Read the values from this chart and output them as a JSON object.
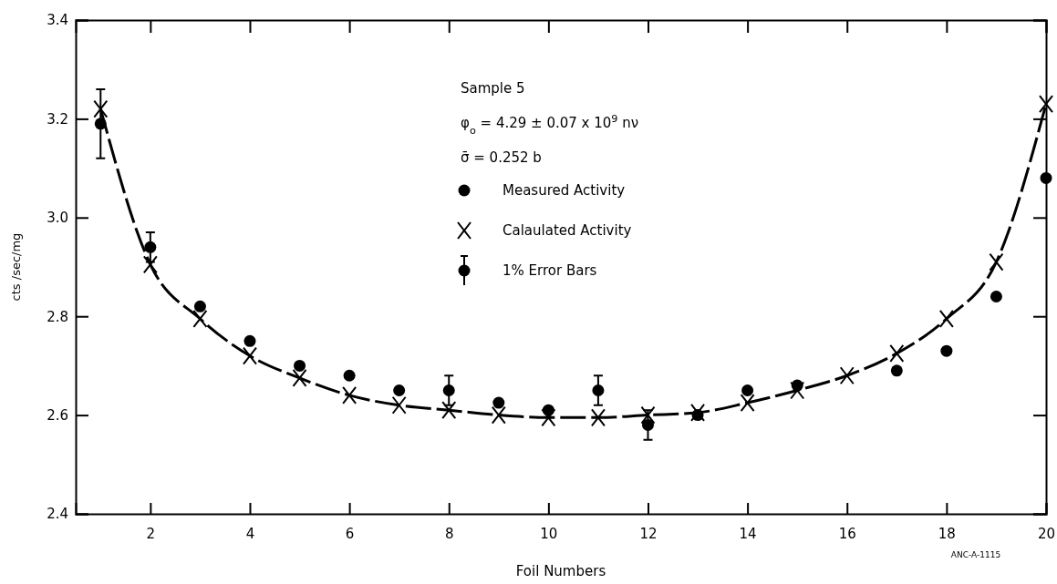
{
  "chart_data": {
    "type": "scatter",
    "xlabel": "Foil Numbers",
    "ylabel": "cts /sec/mg",
    "x": [
      1,
      2,
      3,
      4,
      5,
      6,
      7,
      8,
      9,
      10,
      11,
      12,
      13,
      14,
      15,
      16,
      17,
      18,
      19,
      20
    ],
    "series": [
      {
        "name": "Measured Activity",
        "marker": "circle",
        "color": "#000000",
        "values": [
          3.19,
          2.94,
          2.82,
          2.75,
          2.7,
          2.68,
          2.65,
          2.65,
          2.625,
          2.61,
          2.65,
          2.58,
          2.6,
          2.65,
          2.66,
          null,
          2.69,
          2.73,
          2.84,
          3.08
        ],
        "errors": [
          0.07,
          0.03,
          null,
          null,
          null,
          null,
          null,
          0.03,
          null,
          null,
          0.03,
          0.03,
          null,
          null,
          null,
          null,
          null,
          null,
          null,
          null
        ]
      },
      {
        "name": "Calaulated Activity",
        "type": "line",
        "marker": "cross",
        "line_style": "dashed",
        "color": "#000000",
        "values": [
          3.22,
          2.905,
          2.795,
          2.72,
          2.675,
          2.64,
          2.62,
          2.61,
          2.6,
          2.595,
          2.595,
          2.6,
          2.605,
          2.625,
          2.65,
          2.68,
          2.725,
          2.795,
          2.91,
          3.23
        ]
      }
    ],
    "xlim": [
      0.5,
      20
    ],
    "ylim": [
      2.4,
      3.4
    ],
    "xticks": [
      2,
      4,
      6,
      8,
      10,
      12,
      14,
      16,
      18,
      20
    ],
    "yticks": [
      2.4,
      2.6,
      2.8,
      {
        "value": 3,
        "label": "3.0"
      },
      3.2,
      3.4
    ],
    "grid": false,
    "legend": "top",
    "annotations": [
      "Sample  5",
      "φ$_{o}$  = 4.29 ± 0.07 x 10$^{9}$  nν",
      "σ̄  = 0.252  b",
      "1% Error Bars",
      "ANC-A-1115"
    ]
  }
}
